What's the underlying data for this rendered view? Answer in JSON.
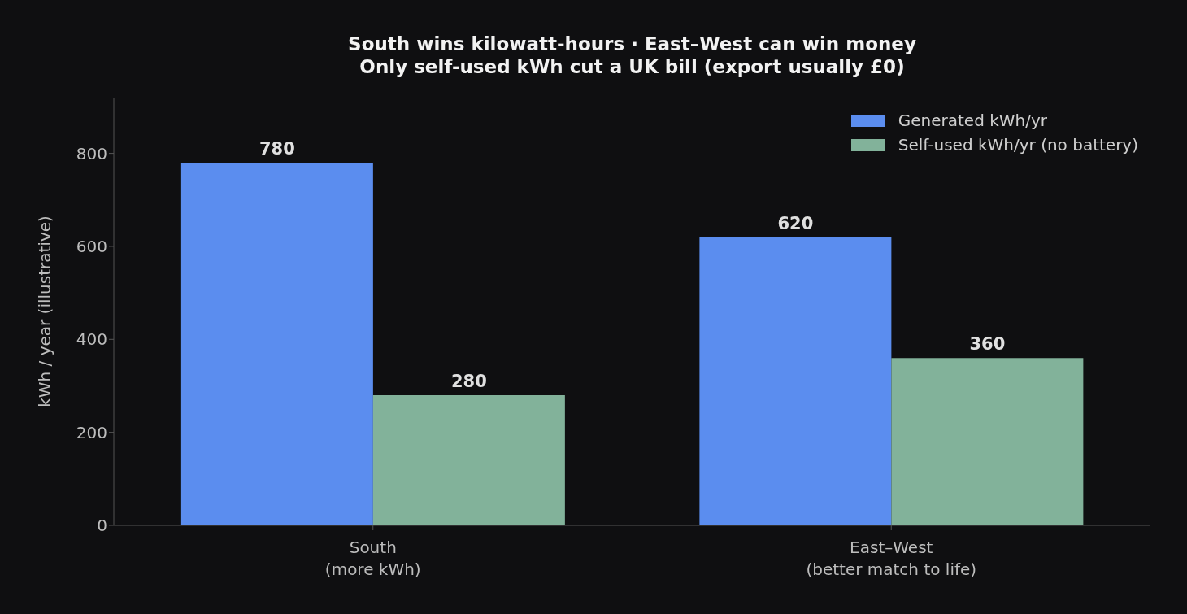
{
  "chart_data": {
    "type": "bar",
    "title": "South wins kilowatt-hours · East–West can win money",
    "subtitle": "Only self-used kWh cut a UK bill (export usually £0)",
    "ylabel": "kWh / year (illustrative)",
    "categories": [
      "South\n(more kWh)",
      "East–West\n(better match to life)"
    ],
    "series": [
      {
        "name": "Generated kWh/yr",
        "color": "#5b8def",
        "values": [
          780,
          620
        ]
      },
      {
        "name": "Self-used kWh/yr (no battery)",
        "color": "#82b29a",
        "values": [
          280,
          360
        ]
      }
    ],
    "ylim": [
      0,
      920
    ],
    "yticks": [
      0,
      200,
      400,
      600,
      800
    ],
    "grid": false,
    "legend": "top right",
    "data_labels": true
  }
}
